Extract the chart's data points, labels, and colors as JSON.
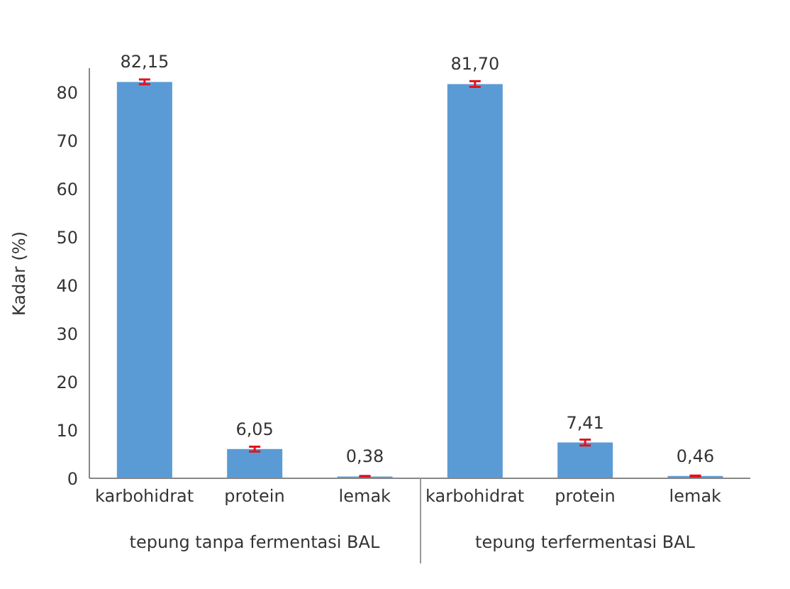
{
  "chart_data": {
    "type": "bar",
    "ylabel": "Kadar (%)",
    "categories": [
      "karbohidrat",
      "protein",
      "lemak",
      "karbohidrat",
      "protein",
      "lemak"
    ],
    "values": [
      82.15,
      6.05,
      0.38,
      81.7,
      7.41,
      0.46
    ],
    "value_labels": [
      "82,15",
      "6,05",
      "0,38",
      "81,70",
      "7,41",
      "0,46"
    ],
    "errors": [
      0.5,
      0.5,
      0.1,
      0.6,
      0.6,
      0.1
    ],
    "color": "#5b9bd5",
    "ylim": [
      0,
      85
    ],
    "yticks": [
      0,
      10,
      20,
      30,
      40,
      50,
      60,
      70,
      80
    ],
    "grid": false,
    "annotations": [
      "tepung tanpa fermentasi BAL",
      "tepung terfermentasi BAL"
    ]
  }
}
